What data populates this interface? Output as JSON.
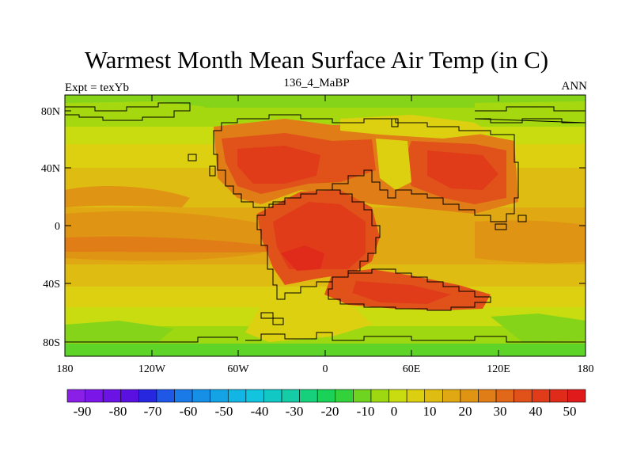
{
  "title": "Warmest Month Mean Surface Air Temp (in C)",
  "left_label": "Expt = texYb",
  "center_label": "136_4_MaBP",
  "right_label": "ANN",
  "map": {
    "lon_ticks": [
      "180",
      "120W",
      "60W",
      "0",
      "60E",
      "120E",
      "180"
    ],
    "lat_ticks": [
      "80N",
      "40N",
      "0",
      "40S",
      "80S"
    ],
    "lat_values": [
      80,
      40,
      0,
      -40,
      -80
    ]
  },
  "colorbar": {
    "labels": [
      "-90",
      "-80",
      "-70",
      "-60",
      "-50",
      "-40",
      "-30",
      "-20",
      "-10",
      "0",
      "10",
      "20",
      "30",
      "40",
      "50"
    ],
    "colors": [
      "#8a1fe8",
      "#7b16e8",
      "#6a13e4",
      "#5a10e0",
      "#2727e0",
      "#1f57e6",
      "#1a7ae8",
      "#1690e6",
      "#14a4e6",
      "#12b6e4",
      "#12c4de",
      "#12c8c4",
      "#14cca6",
      "#16d07c",
      "#1ad258",
      "#34d23a",
      "#6ed420",
      "#9ed810",
      "#c8dc10",
      "#dccf10",
      "#dfbc12",
      "#e0a812",
      "#e09414",
      "#e07d16",
      "#e06818",
      "#e0521a",
      "#e03c1a",
      "#e02a1a",
      "#e01a1a"
    ]
  }
}
